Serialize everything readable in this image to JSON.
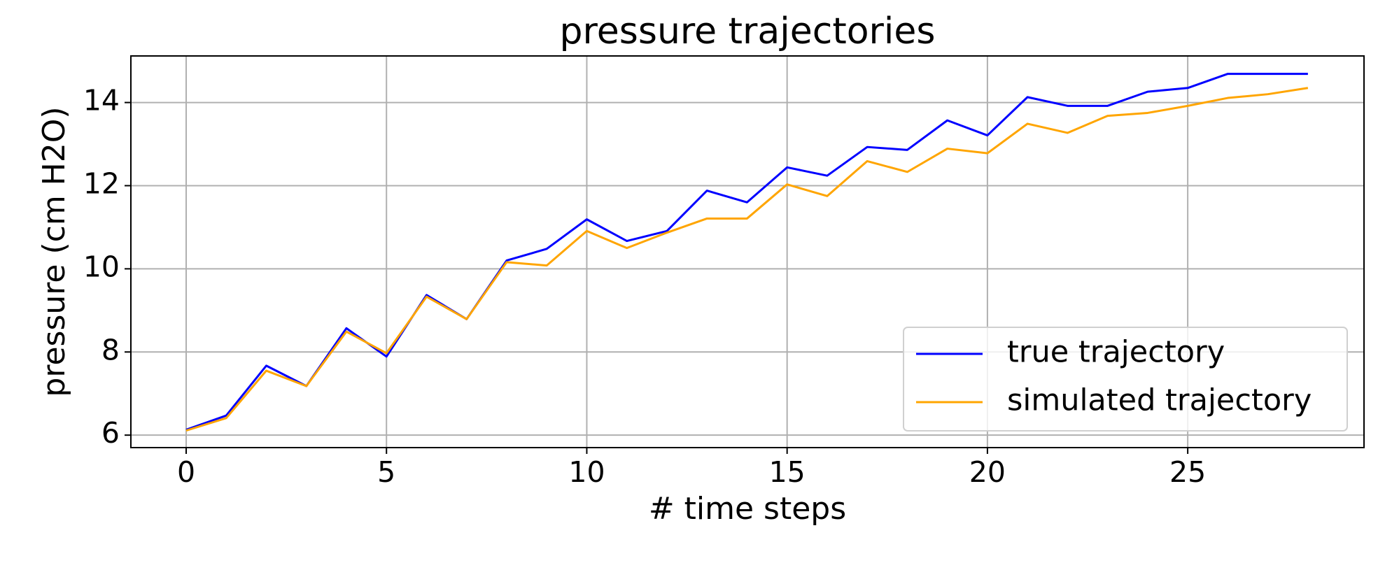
{
  "chart_data": {
    "type": "line",
    "title": "pressure trajectories",
    "x_label": "# time steps",
    "y_label": "pressure (cm H2O)",
    "x": [
      0,
      1,
      2,
      3,
      4,
      5,
      6,
      7,
      8,
      9,
      10,
      11,
      12,
      13,
      14,
      15,
      16,
      17,
      18,
      19,
      20,
      21,
      22,
      23,
      24,
      25,
      26,
      27,
      28
    ],
    "series": [
      {
        "name": "true trajectory",
        "color": "#0000ff",
        "values": [
          6.13,
          6.47,
          7.67,
          7.18,
          8.57,
          7.89,
          9.37,
          8.79,
          10.2,
          10.48,
          11.19,
          10.67,
          10.91,
          11.88,
          11.6,
          12.44,
          12.24,
          12.93,
          12.86,
          13.57,
          13.21,
          14.13,
          13.92,
          13.92,
          14.26,
          14.35,
          14.69,
          14.69,
          14.69
        ]
      },
      {
        "name": "simulated trajectory",
        "color": "#ffa500",
        "values": [
          6.11,
          6.41,
          7.55,
          7.18,
          8.49,
          7.97,
          9.33,
          8.79,
          10.16,
          10.08,
          10.91,
          10.5,
          10.87,
          11.21,
          11.21,
          12.03,
          11.75,
          12.59,
          12.33,
          12.89,
          12.78,
          13.49,
          13.27,
          13.68,
          13.75,
          13.92,
          14.11,
          14.2,
          14.35
        ]
      }
    ],
    "xlim": [
      -1.38,
      29.4
    ],
    "ylim": [
      5.7,
      15.12
    ],
    "xticks": [
      0,
      5,
      10,
      15,
      20,
      25
    ],
    "yticks": [
      6,
      8,
      10,
      12,
      14
    ],
    "grid": true,
    "legend": "lower right"
  }
}
